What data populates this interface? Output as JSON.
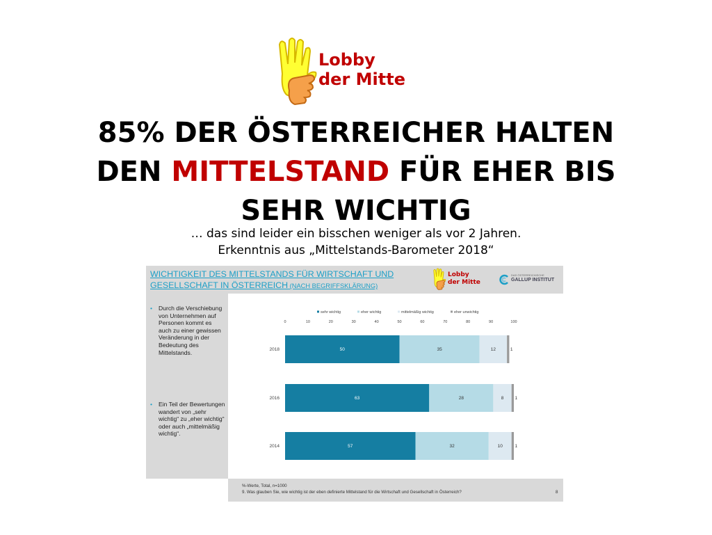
{
  "logo": {
    "line1": "Lobby",
    "line2": "der Mitte"
  },
  "headline": {
    "line1": "85% DER ÖSTERREICHER HALTEN",
    "line2_pre": "DEN ",
    "line2_accent": "MITTELSTAND",
    "line2_post": " FÜR EHER BIS",
    "line3": "SEHR WICHTIG"
  },
  "subline": {
    "line1": "… das sind leider ein bisschen weniger als vor 2 Jahren.",
    "line2": "Erkenntnis aus „Mittelstands-Barometer 2018“"
  },
  "slide": {
    "title_line1": "Wichtigkeit des Mittelstands für Wirtschaft und",
    "title_line2": "Gesellschaft in Österreich",
    "title_small": " (nach Begriffsklärung)",
    "logo_line1": "Lobby",
    "logo_line2": "der Mitte",
    "gallup_small": "DAS ÖSTERREICHISCHE",
    "gallup_big": "GALLUP INSTITUT",
    "bullets": [
      {
        "marker": "•",
        "text": "Durch die Verschiebung von Unternehmen auf Personen kommt es auch zu einer gewissen Veränderung in der Bedeutung des Mittelstands."
      },
      {
        "marker": "•",
        "text": "Ein Teil der Bewertungen wandert von „sehr wichtig“ zu „eher wichtig“ oder auch „mittelmäßig wichtig“."
      }
    ],
    "footer_note1": "%-Werte, Total, n=1000",
    "footer_note2": "9. Was glauben Sie, wie wichtig ist der eben definierte Mittelstand für die Wirtschaft und Gesellschaft in Österreich?",
    "page_number": "8"
  },
  "chart_data": {
    "type": "bar",
    "orientation": "horizontal",
    "stacked": true,
    "categories": [
      "2018",
      "2016",
      "2014"
    ],
    "series": [
      {
        "name": "sehr wichtig",
        "values": [
          50,
          63,
          57
        ],
        "labels": [
          "50",
          "63",
          "57"
        ],
        "color": "#157ea2"
      },
      {
        "name": "eher wichtig",
        "values": [
          35,
          28,
          32
        ],
        "labels": [
          "35",
          "28",
          "32"
        ],
        "color": "#b5dbe6"
      },
      {
        "name": "mittelmäßig wichtig",
        "values": [
          12,
          8,
          10
        ],
        "labels": [
          "12",
          "8",
          "10"
        ],
        "color": "#dde9f1"
      },
      {
        "name": "eher unwichtig",
        "values": [
          1,
          1,
          1
        ],
        "labels": [
          "1",
          "1",
          "1"
        ],
        "color": "#9a9a9a"
      }
    ],
    "xlim": [
      0,
      100
    ],
    "xticks": [
      "0",
      "10",
      "20",
      "30",
      "40",
      "50",
      "60",
      "70",
      "80",
      "90",
      "100"
    ],
    "legend_position": "top",
    "grid": false
  },
  "colors": {
    "accent_red": "#c00000",
    "title_blue": "#1c9fc7",
    "panel_gray": "#d9d9d9"
  }
}
